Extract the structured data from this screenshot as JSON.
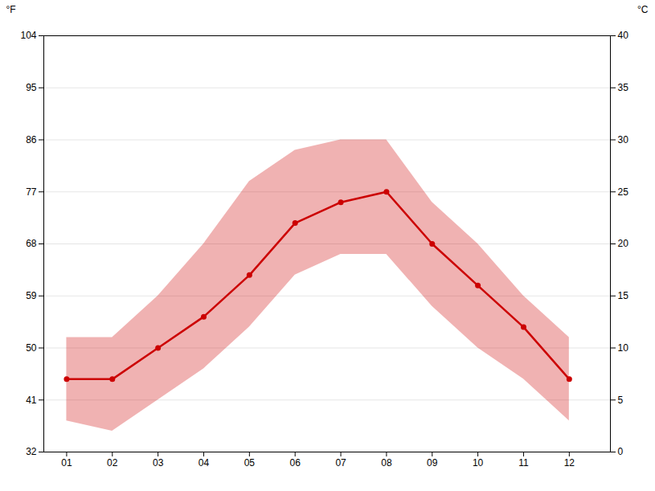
{
  "chart_data": {
    "type": "line",
    "x": [
      1,
      2,
      3,
      4,
      5,
      6,
      7,
      8,
      9,
      10,
      11,
      12
    ],
    "values": [
      7.0,
      7.0,
      10.0,
      13.0,
      17.0,
      22.0,
      24.0,
      25.0,
      20.0,
      16.0,
      12.0,
      7.0
    ],
    "upper": [
      11.0,
      11.0,
      15.0,
      20.0,
      26.0,
      29.0,
      30.0,
      30.0,
      24.0,
      20.0,
      15.0,
      11.0
    ],
    "lower": [
      3.0,
      2.0,
      5.0,
      8.0,
      12.0,
      17.0,
      19.0,
      19.0,
      14.0,
      10.0,
      7.0,
      3.0
    ],
    "color": "#cc0000",
    "marker": "circle",
    "xlim": [
      0.5,
      12.9
    ],
    "xticks": [
      {
        "value": 1,
        "label": "01"
      },
      {
        "value": 2,
        "label": "02"
      },
      {
        "value": 3,
        "label": "03"
      },
      {
        "value": 4,
        "label": "04"
      },
      {
        "value": 5,
        "label": "05"
      },
      {
        "value": 6,
        "label": "06"
      },
      {
        "value": 7,
        "label": "07"
      },
      {
        "value": 8,
        "label": "08"
      },
      {
        "value": 9,
        "label": "09"
      },
      {
        "value": 10,
        "label": "10"
      },
      {
        "value": 11,
        "label": "11"
      },
      {
        "value": 12,
        "label": "12"
      }
    ],
    "ylabel": "°C",
    "ylim": [
      0,
      40
    ],
    "yticks": [
      0,
      5,
      10,
      15,
      20,
      25,
      30,
      35,
      40
    ],
    "y2label": "°F",
    "y2lim": [
      32,
      104
    ],
    "y2ticks": [
      32,
      41,
      50,
      59,
      68,
      77,
      86,
      95,
      104
    ],
    "grid": true
  }
}
